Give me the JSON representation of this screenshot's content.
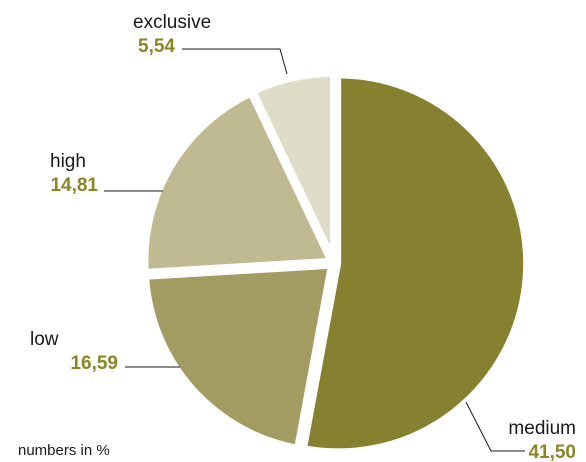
{
  "chart_data": {
    "type": "pie",
    "unit_note": "numbers in %",
    "slices": [
      {
        "label": "medium",
        "value_text": "41,50",
        "value": 41.5,
        "color": "#868130"
      },
      {
        "label": "low",
        "value_text": "16,59",
        "value": 16.59,
        "color": "#a39c62"
      },
      {
        "label": "high",
        "value_text": "14,81",
        "value": 14.81,
        "color": "#c0ba92"
      },
      {
        "label": "exclusive",
        "value_text": "5,54",
        "value": 5.54,
        "color": "#dfdcc8"
      }
    ],
    "value_label_color": "#8b8526"
  }
}
